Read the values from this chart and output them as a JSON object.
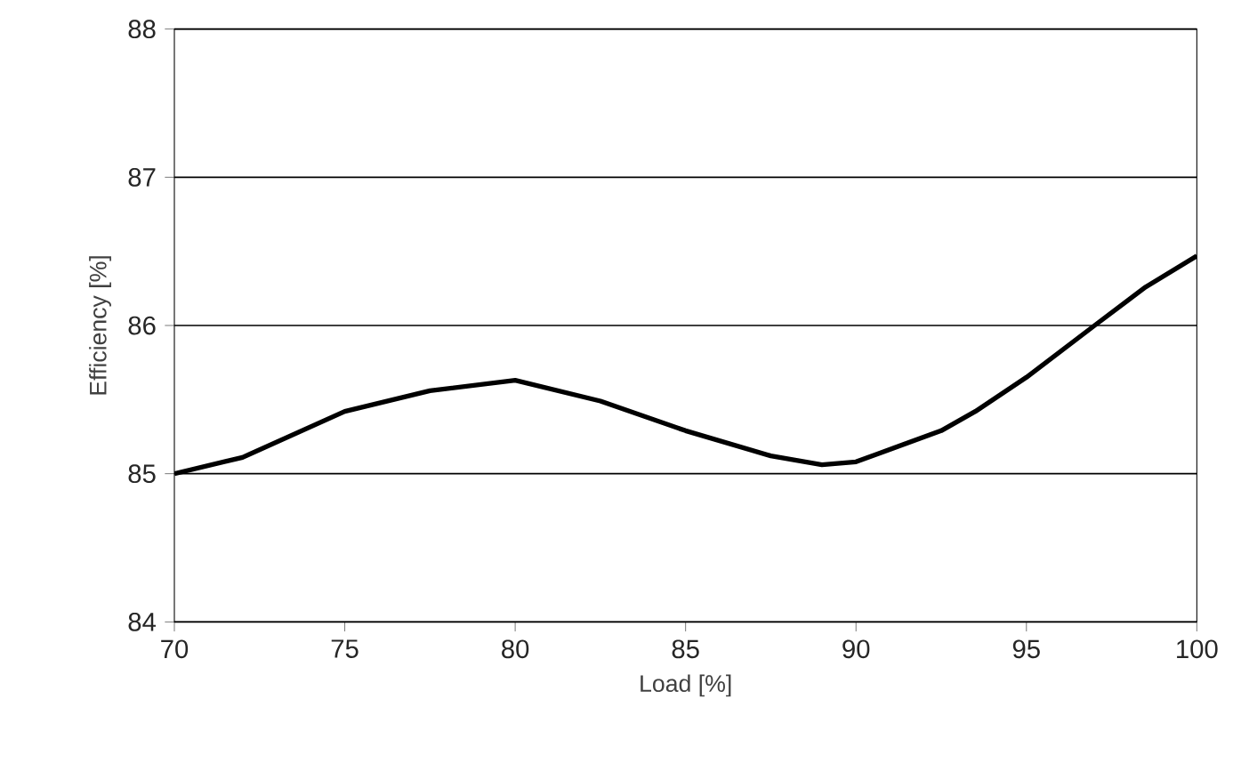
{
  "chart_data": {
    "type": "line",
    "xlabel": "Load [%]",
    "ylabel": "Efficiency [%]",
    "x": [
      70,
      72,
      75,
      77.5,
      80,
      82.5,
      85,
      87.5,
      89,
      90,
      92.5,
      93.5,
      95,
      97,
      98.5,
      100
    ],
    "series": [
      {
        "color": "#000000",
        "values": [
          85.0,
          85.11,
          85.42,
          85.56,
          85.63,
          85.49,
          85.29,
          85.12,
          85.06,
          85.08,
          85.29,
          85.42,
          85.65,
          86.0,
          86.26,
          86.47
        ]
      }
    ],
    "xlim": [
      70,
      100
    ],
    "ylim": [
      84,
      88
    ],
    "xticks": [
      70,
      75,
      80,
      85,
      90,
      95,
      100
    ],
    "yticks": [
      84,
      85,
      86,
      87,
      88
    ],
    "grid": "y",
    "marker": "none",
    "line_style": "solid"
  }
}
